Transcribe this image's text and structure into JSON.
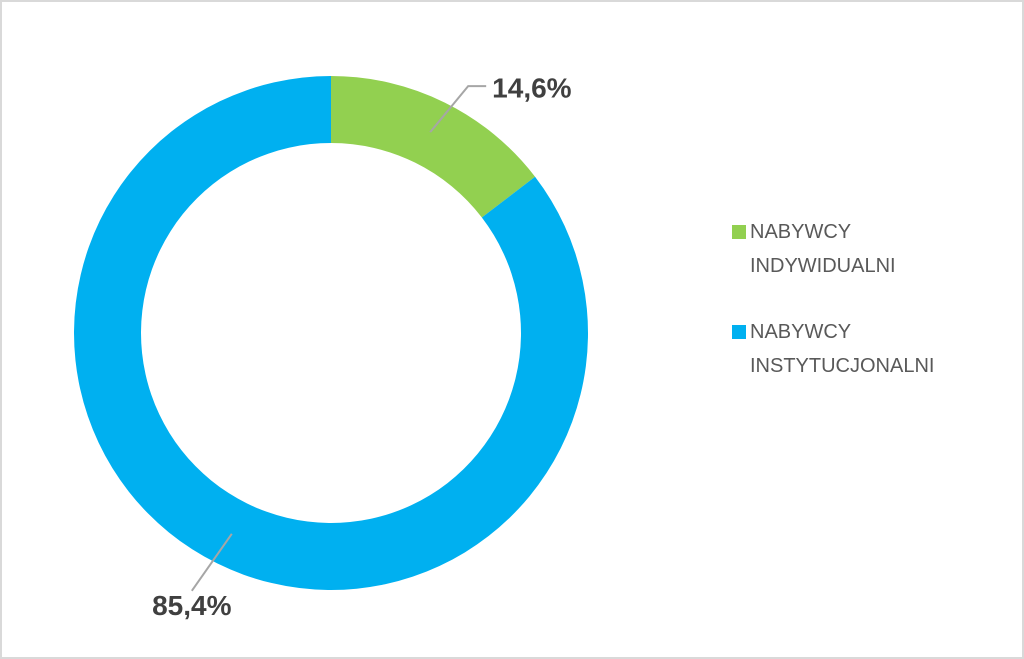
{
  "chart_data": {
    "type": "donut",
    "categories": [
      "NABYWCY INDYWIDUALNI",
      "NABYWCY INSTYTUCJONALNI"
    ],
    "values": [
      14.6,
      85.4
    ],
    "value_labels": [
      "14,6%",
      "85,4%"
    ],
    "colors": [
      "#92d050",
      "#00b0f0"
    ],
    "legend": "right"
  }
}
